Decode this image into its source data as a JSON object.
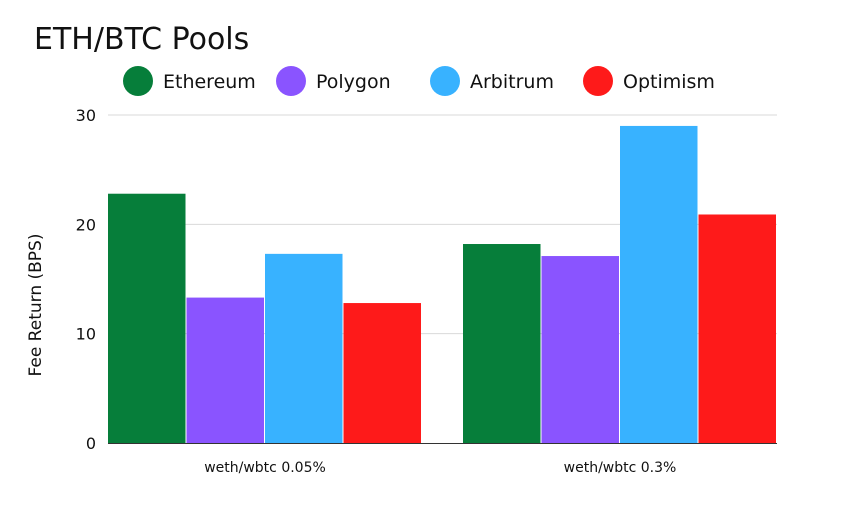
{
  "chart_data": {
    "type": "bar",
    "title": "ETH/BTC Pools",
    "xlabel": "",
    "ylabel": "Fee Return (BPS)",
    "categories": [
      "weth/wbtc 0.05%",
      "weth/wbtc 0.3%"
    ],
    "series": [
      {
        "name": "Ethereum",
        "color": "#067e3a",
        "values": [
          22.8,
          18.2
        ]
      },
      {
        "name": "Polygon",
        "color": "#8a54ff",
        "values": [
          13.3,
          17.1
        ]
      },
      {
        "name": "Arbitrum",
        "color": "#38b2ff",
        "values": [
          17.3,
          29.0
        ]
      },
      {
        "name": "Optimism",
        "color": "#fe1a1a",
        "values": [
          12.8,
          20.9
        ]
      }
    ],
    "ylim": [
      0,
      30
    ],
    "yticks": [
      0,
      10,
      20,
      30
    ],
    "grid": true,
    "legend_position": "top"
  }
}
